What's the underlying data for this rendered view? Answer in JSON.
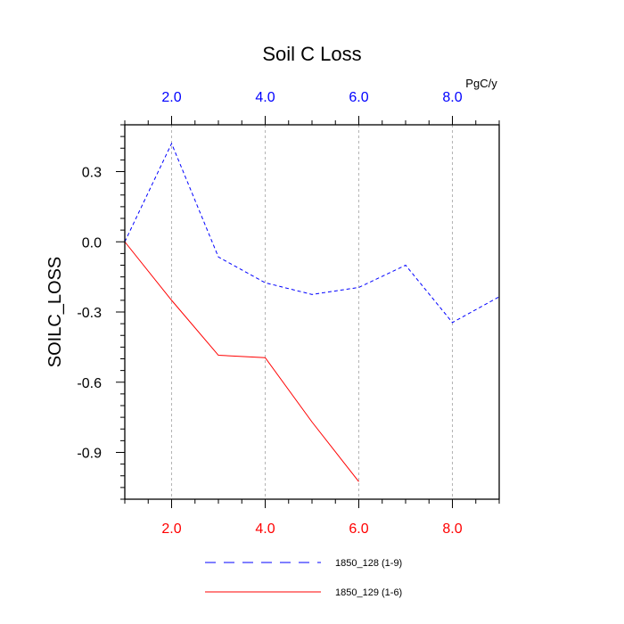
{
  "chart_data": {
    "type": "line",
    "title": "Soil C Loss",
    "ylabel": "SOILC_LOSS",
    "units_label": "PgC/y",
    "xlim": [
      1,
      9
    ],
    "ylim": [
      -1.1,
      0.5
    ],
    "x_ticks": [
      2,
      4,
      6,
      8
    ],
    "x_tick_labels": [
      "2.0",
      "4.0",
      "6.0",
      "8.0"
    ],
    "y_ticks": [
      0.3,
      0.0,
      -0.3,
      -0.6,
      -0.9
    ],
    "y_tick_labels": [
      "0.3",
      "0.0",
      "-0.3",
      "-0.6",
      "-0.9"
    ],
    "grid": "vertical dashed at major x ticks",
    "legend_position": "bottom",
    "top_axis_color": "#0000ff",
    "bottom_axis_color": "#ff0000",
    "series": [
      {
        "name": "1850_128 (1-9)",
        "color": "#0000ff",
        "style": "dashed",
        "x": [
          1,
          2,
          3,
          4,
          5,
          6,
          7,
          8,
          9
        ],
        "y": [
          0.0,
          0.42,
          -0.065,
          -0.175,
          -0.225,
          -0.195,
          -0.1,
          -0.345,
          -0.235
        ]
      },
      {
        "name": "1850_129 (1-6)",
        "color": "#ff0000",
        "style": "solid",
        "x": [
          1,
          2,
          3,
          4,
          5,
          6
        ],
        "y": [
          0.0,
          -0.25,
          -0.485,
          -0.495,
          -0.77,
          -1.025
        ]
      }
    ]
  }
}
